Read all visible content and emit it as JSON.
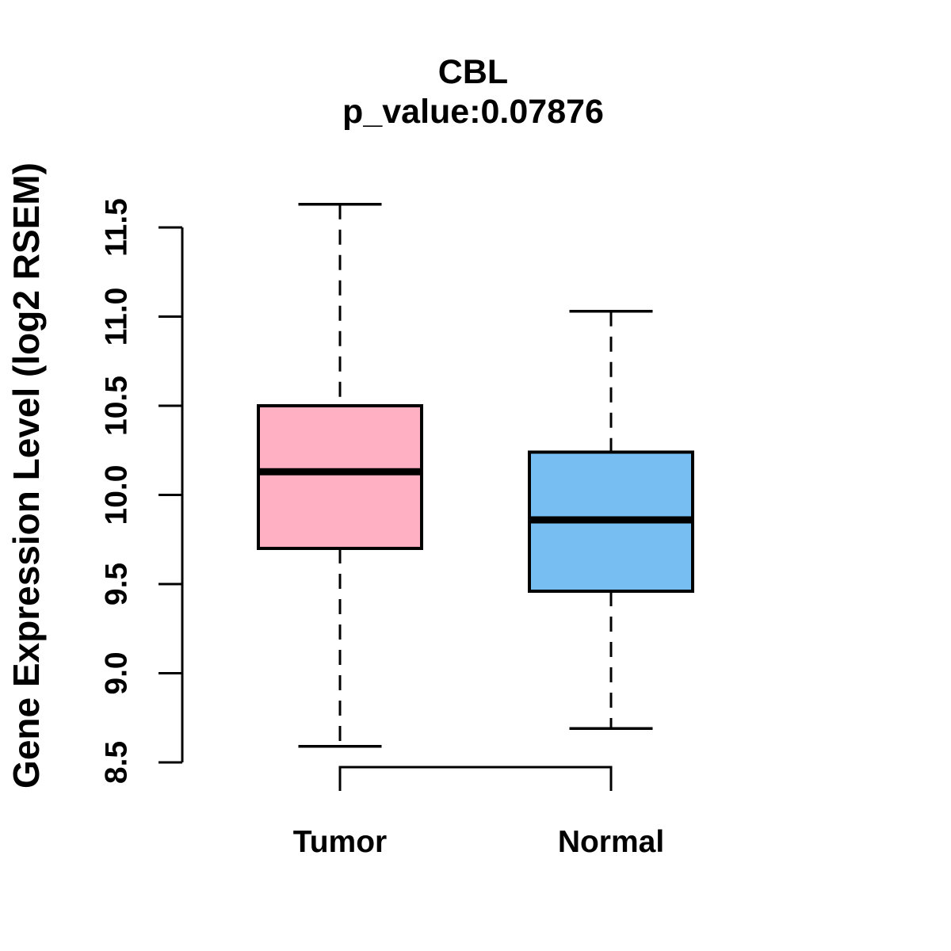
{
  "chart_data": {
    "type": "boxplot",
    "title": "CBL",
    "subtitle": "p_value:0.07876",
    "ylabel": "Gene Expression Level (log2 RSEM)",
    "xlabel": "",
    "categories": [
      "Tumor",
      "Normal"
    ],
    "ylim": [
      8.5,
      11.5
    ],
    "y_ticks": [
      8.5,
      9.0,
      9.5,
      10.0,
      10.5,
      11.0,
      11.5
    ],
    "y_tick_labels": [
      "8.5",
      "9.0",
      "9.5",
      "10.0",
      "10.5",
      "11.0",
      "11.5"
    ],
    "grid": false,
    "legend": "none",
    "series": [
      {
        "name": "Tumor",
        "whisker_low": 8.59,
        "q1": 9.7,
        "median": 10.13,
        "q3": 10.5,
        "whisker_high": 11.63,
        "fill_color": "#FFB1C3"
      },
      {
        "name": "Normal",
        "whisker_low": 8.69,
        "q1": 9.46,
        "median": 9.86,
        "q3": 10.24,
        "whisker_high": 11.03,
        "fill_color": "#77BEF2"
      }
    ],
    "line_color": "#000000",
    "background_color": "#FFFFFF"
  }
}
